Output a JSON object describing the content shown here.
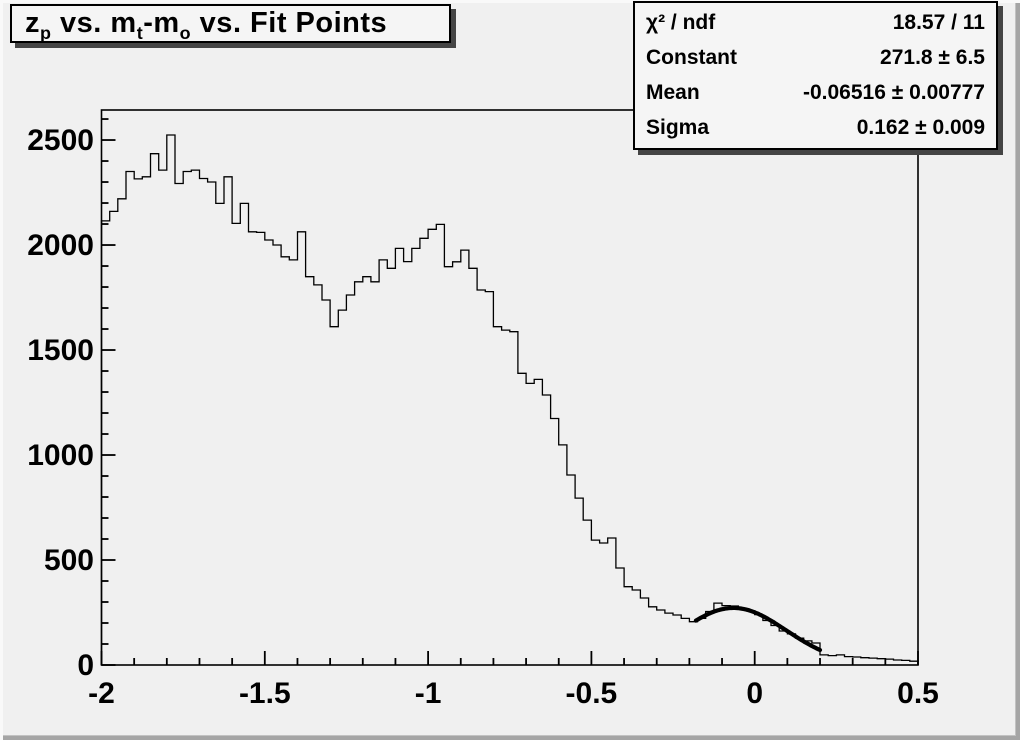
{
  "title": {
    "plain": "z_p vs. m_t-m_o vs. Fit Points",
    "segments": [
      {
        "text": "z"
      },
      {
        "text": "p",
        "sub": true
      },
      {
        "text": " vs. m"
      },
      {
        "text": "t",
        "sub": true
      },
      {
        "text": "-m"
      },
      {
        "text": "o",
        "sub": true
      },
      {
        "text": " vs. Fit Points"
      }
    ]
  },
  "stats": {
    "rows": [
      {
        "label": "χ² / ndf",
        "value": "18.57 / 11"
      },
      {
        "label": "Constant",
        "value": "271.8 ± 6.5"
      },
      {
        "label": "Mean",
        "value": "-0.06516 ± 0.00777"
      },
      {
        "label": "Sigma",
        "value": "0.162 ± 0.009"
      }
    ]
  },
  "colors": {
    "canvas_bg": "#f0f0f0",
    "box_fill": "#f5f5f5",
    "line": "#000000",
    "box_shadow": "#454545",
    "bevel_light": "#f9f9f9",
    "bevel_dark": "#a5a5a5"
  },
  "chart_data": {
    "type": "histogram",
    "title": "z_p vs. m_t-m_o vs. Fit Points",
    "xlabel": "",
    "ylabel": "",
    "xlim": [
      -2.0,
      0.5
    ],
    "ylim": [
      0,
      2643
    ],
    "grid": false,
    "legend_position": "none",
    "x_major_ticks": [
      -2,
      -1.5,
      -1,
      -0.5,
      0,
      0.5
    ],
    "x_tick_labels": [
      "-2",
      "-1.5",
      "-1",
      "-0.5",
      "0",
      "0.5"
    ],
    "x_minor_step": 0.1,
    "y_major_ticks": [
      0,
      500,
      1000,
      1500,
      2000,
      2500
    ],
    "y_tick_labels": [
      "0",
      "500",
      "1000",
      "1500",
      "2000",
      "2500"
    ],
    "y_minor_step": 100,
    "bin_start": -2.0,
    "bin_width": 0.025,
    "values": [
      2115,
      2160,
      2220,
      2350,
      2315,
      2325,
      2435,
      2357,
      2524,
      2293,
      2350,
      2357,
      2317,
      2300,
      2198,
      2325,
      2103,
      2198,
      2063,
      2060,
      2024,
      2000,
      1944,
      1929,
      2063,
      1849,
      1810,
      1738,
      1611,
      1690,
      1762,
      1825,
      1849,
      1825,
      1929,
      1889,
      1984,
      1921,
      1984,
      2032,
      2075,
      2098,
      1897,
      1920,
      1976,
      1889,
      1786,
      1778,
      1611,
      1595,
      1587,
      1389,
      1341,
      1360,
      1286,
      1174,
      1048,
      905,
      795,
      690,
      595,
      581,
      605,
      462,
      373,
      357,
      319,
      277,
      262,
      247,
      238,
      222,
      206,
      222,
      255,
      295,
      283,
      281,
      270,
      258,
      240,
      212,
      188,
      162,
      148,
      128,
      115,
      105,
      48,
      45,
      48,
      40,
      38,
      35,
      33,
      30,
      28,
      24,
      22,
      18
    ],
    "fit": {
      "function": "gaussian",
      "chi2": 18.57,
      "ndf": 11,
      "constant": 271.8,
      "constant_err": 6.5,
      "mean": -0.06516,
      "mean_err": 0.00777,
      "sigma": 0.162,
      "sigma_err": 0.009,
      "draw_range": [
        -0.18,
        0.2
      ]
    }
  }
}
